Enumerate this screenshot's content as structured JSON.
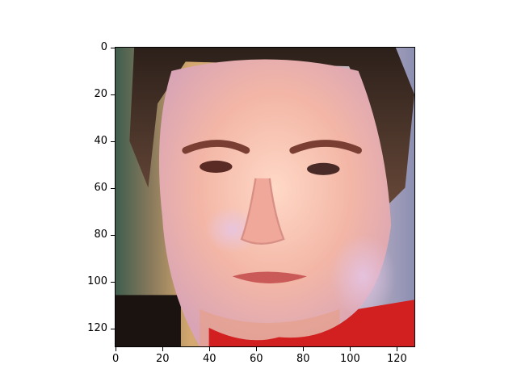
{
  "image": {
    "subject": "portrait-photo",
    "pixel_extent": [
      128,
      128
    ]
  },
  "axes": {
    "x_ticks": [
      "0",
      "20",
      "40",
      "60",
      "80",
      "100",
      "120"
    ],
    "y_ticks": [
      "0",
      "20",
      "40",
      "60",
      "80",
      "100",
      "120"
    ],
    "x_range": [
      0,
      128
    ],
    "y_range": [
      0,
      128
    ],
    "y_inverted": true
  },
  "colors": {
    "background": "#ffffff",
    "skin": "#f2b6a4",
    "hair": "#3a2a22",
    "shirt": "#d21f1f"
  }
}
